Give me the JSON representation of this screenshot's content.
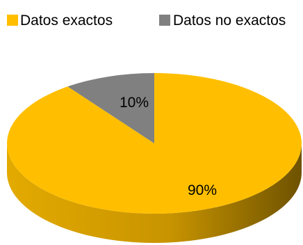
{
  "chart_data": {
    "type": "pie",
    "style": "3d",
    "legend_position": "top",
    "categories": [
      "Datos exactos",
      "Datos no exactos"
    ],
    "values": [
      90,
      10
    ],
    "data_labels": [
      "90%",
      "10%"
    ],
    "colors": {
      "Datos exactos": "#FFBF00",
      "Datos no exactos": "#808080"
    },
    "side_colors": {
      "Datos exactos": {
        "light": "#E3AA00",
        "dark": "#6E5200"
      },
      "Datos no exactos": {
        "light": "#707070",
        "dark": "#4A4A4A"
      }
    }
  }
}
